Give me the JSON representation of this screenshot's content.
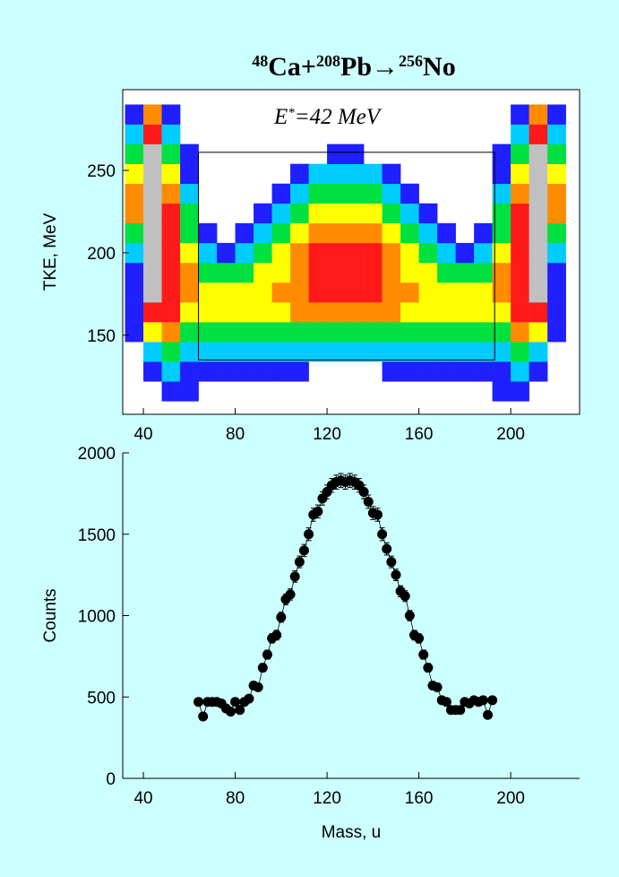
{
  "chart_data": [
    {
      "type": "heatmap",
      "title": [
        {
          "text": "48",
          "sup": true
        },
        {
          "text": "Ca+",
          "sup": false
        },
        {
          "text": "208",
          "sup": true
        },
        {
          "text": "Pb→",
          "sup": false
        },
        {
          "text": "256",
          "sup": true
        },
        {
          "text": "No",
          "sup": false
        }
      ],
      "annotation": [
        {
          "text": "E",
          "sup": false
        },
        {
          "text": "*",
          "sup": true
        },
        {
          "text": "=42 MeV",
          "sup": false
        }
      ],
      "ylabel": "TKE, MeV",
      "xlim": [
        31,
        230
      ],
      "ylim": [
        102,
        299
      ],
      "xticks": [
        40,
        80,
        120,
        160,
        200
      ],
      "yticks": [
        150,
        200,
        250
      ],
      "x_bins": [
        32,
        40,
        48,
        56,
        64,
        72,
        80,
        88,
        96,
        104,
        112,
        120,
        128,
        136,
        144,
        152,
        160,
        168,
        176,
        184,
        192,
        200,
        208,
        216,
        224
      ],
      "y_bins": [
        110,
        122,
        134,
        146,
        158,
        170,
        182,
        194,
        206,
        218,
        230,
        242,
        254,
        266,
        278,
        290
      ],
      "colorscale": [
        "#1f1fff",
        "#00ccff",
        "#00e040",
        "#ffff00",
        "#ff8c00",
        "#ff1a1a",
        "#c0c0c0"
      ],
      "z": [
        [
          0,
          0,
          1,
          1,
          0,
          0,
          0,
          0,
          0,
          0,
          0,
          0,
          0,
          0,
          0,
          0,
          0,
          0,
          0,
          0,
          1,
          1,
          0,
          0
        ],
        [
          0,
          1,
          2,
          1,
          1,
          1,
          1,
          1,
          1,
          1,
          0,
          0,
          0,
          0,
          1,
          1,
          1,
          1,
          1,
          1,
          1,
          2,
          1,
          0
        ],
        [
          0,
          2,
          3,
          2,
          2,
          2,
          2,
          2,
          2,
          2,
          2,
          2,
          2,
          2,
          2,
          2,
          2,
          2,
          2,
          2,
          2,
          3,
          2,
          0
        ],
        [
          1,
          4,
          5,
          3,
          3,
          3,
          3,
          3,
          3,
          3,
          3,
          3,
          3,
          3,
          3,
          3,
          3,
          3,
          3,
          3,
          3,
          5,
          4,
          1
        ],
        [
          1,
          6,
          6,
          4,
          4,
          4,
          4,
          4,
          4,
          5,
          5,
          5,
          5,
          5,
          5,
          4,
          4,
          4,
          4,
          4,
          4,
          6,
          6,
          1
        ],
        [
          1,
          7,
          6,
          5,
          4,
          4,
          4,
          4,
          5,
          5,
          6,
          6,
          6,
          6,
          5,
          5,
          4,
          4,
          4,
          4,
          5,
          6,
          7,
          1
        ],
        [
          1,
          7,
          6,
          5,
          3,
          3,
          3,
          4,
          4,
          5,
          6,
          6,
          6,
          6,
          5,
          4,
          4,
          3,
          3,
          3,
          5,
          6,
          7,
          1
        ],
        [
          2,
          7,
          6,
          4,
          2,
          1,
          2,
          3,
          4,
          5,
          6,
          6,
          6,
          6,
          5,
          4,
          3,
          2,
          1,
          2,
          4,
          6,
          7,
          2
        ],
        [
          3,
          7,
          6,
          3,
          1,
          0,
          1,
          2,
          3,
          4,
          5,
          5,
          5,
          5,
          4,
          3,
          2,
          1,
          0,
          1,
          3,
          6,
          7,
          3
        ],
        [
          5,
          7,
          6,
          3,
          0,
          0,
          0,
          1,
          2,
          3,
          4,
          4,
          4,
          4,
          3,
          2,
          1,
          0,
          0,
          0,
          3,
          6,
          7,
          5
        ],
        [
          5,
          7,
          5,
          2,
          0,
          0,
          0,
          0,
          1,
          2,
          3,
          3,
          3,
          3,
          2,
          1,
          0,
          0,
          0,
          0,
          2,
          5,
          7,
          5
        ],
        [
          4,
          7,
          4,
          1,
          0,
          0,
          0,
          0,
          0,
          1,
          2,
          2,
          2,
          2,
          1,
          0,
          0,
          0,
          0,
          0,
          1,
          4,
          7,
          4
        ],
        [
          3,
          7,
          3,
          1,
          0,
          0,
          0,
          0,
          0,
          0,
          0,
          1,
          1,
          0,
          0,
          0,
          0,
          0,
          0,
          0,
          1,
          3,
          7,
          3
        ],
        [
          2,
          6,
          2,
          0,
          0,
          0,
          0,
          0,
          0,
          0,
          0,
          0,
          0,
          0,
          0,
          0,
          0,
          0,
          0,
          0,
          0,
          2,
          6,
          2
        ],
        [
          1,
          5,
          1,
          0,
          0,
          0,
          0,
          0,
          0,
          0,
          0,
          0,
          0,
          0,
          0,
          0,
          0,
          0,
          0,
          0,
          0,
          1,
          5,
          1
        ]
      ],
      "gate": {
        "x": [
          64,
          193
        ],
        "y": [
          135,
          261
        ]
      }
    },
    {
      "type": "scatter",
      "xlabel": "Mass, u",
      "ylabel": "Counts",
      "color": "#000000",
      "xlim": [
        31,
        230
      ],
      "ylim": [
        0,
        2000
      ],
      "xticks": [
        40,
        80,
        120,
        160,
        200
      ],
      "yticks": [
        0,
        500,
        1000,
        1500,
        2000
      ],
      "x": [
        64,
        66,
        68,
        70,
        72,
        74,
        76,
        78,
        80,
        82,
        84,
        86,
        88,
        90,
        92,
        94,
        96,
        98,
        100,
        102,
        104,
        106,
        108,
        110,
        112,
        114,
        116,
        118,
        120,
        122,
        124,
        126,
        128,
        130,
        132,
        134,
        136,
        138,
        140,
        142,
        144,
        146,
        148,
        150,
        152,
        154,
        156,
        158,
        160,
        162,
        164,
        166,
        168,
        170,
        172,
        174,
        176,
        178,
        180,
        182,
        184,
        186,
        188,
        190,
        192
      ],
      "values": [
        470,
        380,
        470,
        470,
        470,
        460,
        430,
        410,
        470,
        420,
        470,
        490,
        570,
        560,
        680,
        760,
        860,
        880,
        990,
        1100,
        1130,
        1240,
        1330,
        1400,
        1500,
        1620,
        1640,
        1720,
        1760,
        1800,
        1820,
        1830,
        1820,
        1830,
        1820,
        1800,
        1760,
        1700,
        1630,
        1620,
        1500,
        1410,
        1330,
        1250,
        1150,
        1120,
        1000,
        880,
        860,
        760,
        680,
        570,
        560,
        480,
        470,
        420,
        420,
        420,
        470,
        460,
        480,
        470,
        480,
        390,
        480
      ],
      "errors": [
        22,
        19,
        22,
        22,
        22,
        21,
        21,
        20,
        22,
        20,
        22,
        22,
        24,
        24,
        26,
        28,
        29,
        30,
        31,
        33,
        34,
        35,
        36,
        37,
        39,
        40,
        40,
        41,
        42,
        42,
        43,
        43,
        43,
        43,
        43,
        42,
        42,
        41,
        40,
        40,
        39,
        38,
        36,
        35,
        34,
        33,
        32,
        30,
        29,
        28,
        26,
        24,
        24,
        22,
        22,
        20,
        20,
        20,
        22,
        21,
        22,
        22,
        22,
        20,
        22
      ]
    }
  ]
}
